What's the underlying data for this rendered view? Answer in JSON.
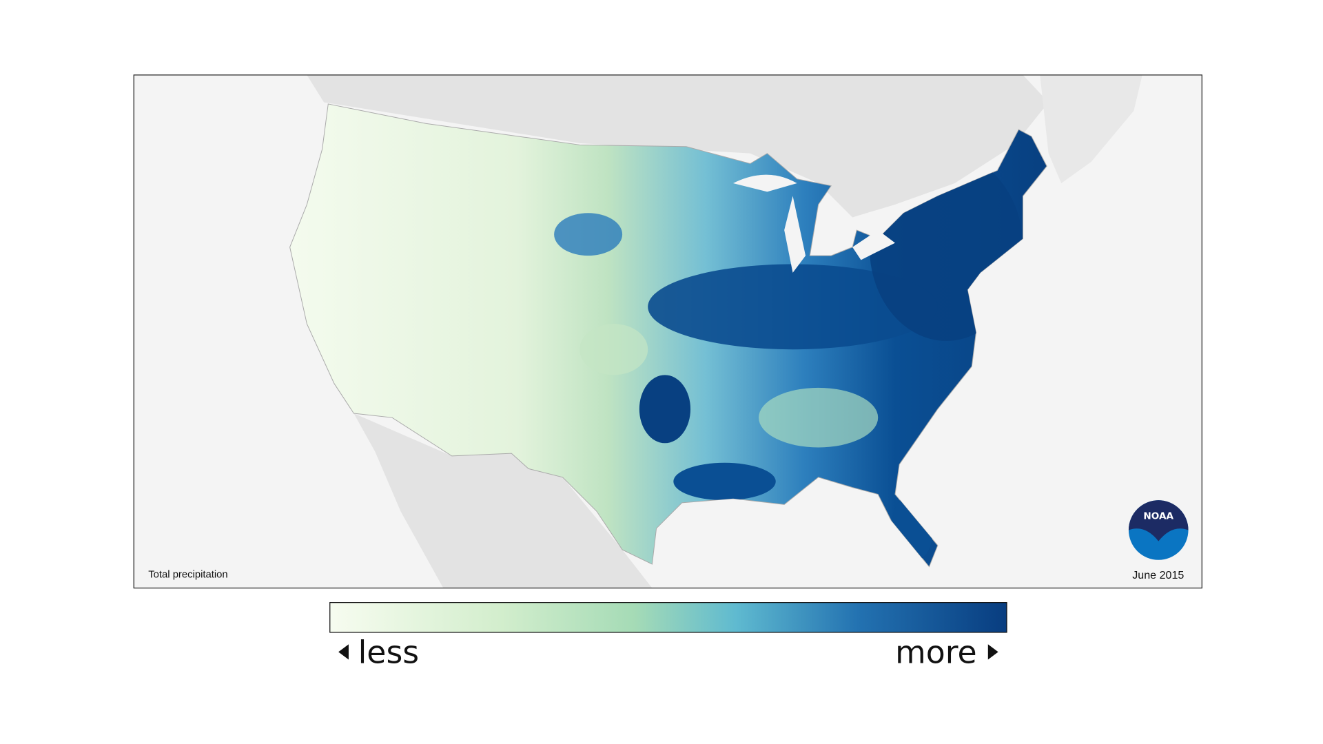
{
  "map": {
    "title": "Total precipitation",
    "date": "June 2015",
    "legend": {
      "low": "less",
      "high": "more"
    },
    "logo": "NOAA"
  }
}
